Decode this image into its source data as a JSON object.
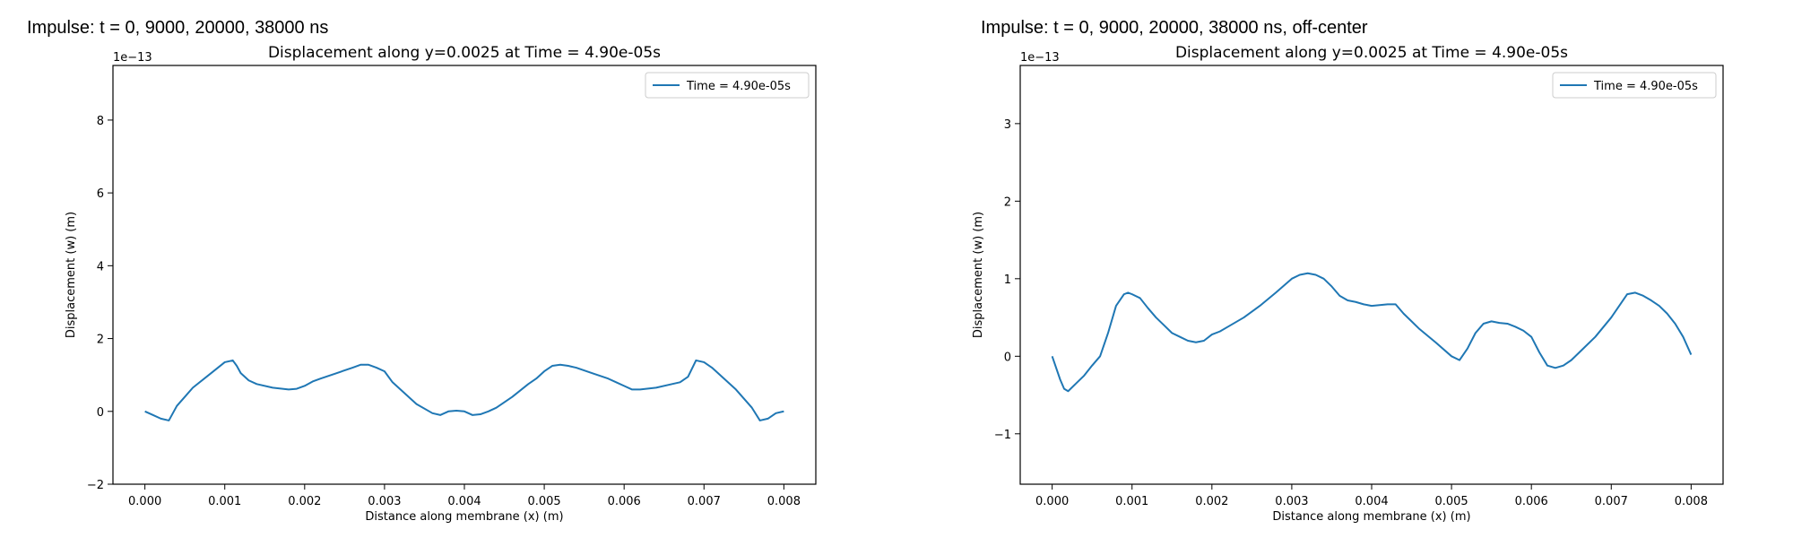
{
  "panels": [
    {
      "heading": "Impulse: t = 0, 9000, 20000, 38000 ns"
    },
    {
      "heading": "Impulse: t = 0, 9000, 20000, 38000 ns, off-center"
    }
  ],
  "colors": {
    "series": "#1f77b4",
    "axes": "#000000"
  },
  "chart_data": [
    {
      "type": "line",
      "title": "Displacement along y=0.0025 at Time = 4.90e-05s",
      "xlabel": "Distance along membrane (x) (m)",
      "ylabel": "Displacement (w) (m)",
      "y_offset_label": "1e−13",
      "xlim": [
        -0.0004,
        0.0084
      ],
      "ylim": [
        -2,
        9.5
      ],
      "xticks": [
        0.0,
        0.001,
        0.002,
        0.003,
        0.004,
        0.005,
        0.006,
        0.007,
        0.008
      ],
      "xtick_labels": [
        "0.000",
        "0.001",
        "0.002",
        "0.003",
        "0.004",
        "0.005",
        "0.006",
        "0.007",
        "0.008"
      ],
      "yticks": [
        -2,
        0,
        2,
        4,
        6,
        8
      ],
      "ytick_labels": [
        "−2",
        "0",
        "2",
        "4",
        "6",
        "8"
      ],
      "grid": false,
      "legend_position": "top-right",
      "series": [
        {
          "name": "Time = 4.90e-05s",
          "x": [
            0.0,
            0.0001,
            0.0002,
            0.0003,
            0.00035,
            0.0004,
            0.0005,
            0.0006,
            0.0008,
            0.001,
            0.0011,
            0.00115,
            0.0012,
            0.0013,
            0.0014,
            0.0016,
            0.0018,
            0.0019,
            0.002,
            0.0021,
            0.0022,
            0.0024,
            0.0026,
            0.0027,
            0.0028,
            0.0029,
            0.003,
            0.0031,
            0.0032,
            0.0034,
            0.0036,
            0.0037,
            0.0038,
            0.0039,
            0.004,
            0.0041,
            0.0042,
            0.0043,
            0.0044,
            0.0046,
            0.0048,
            0.0049,
            0.005,
            0.0051,
            0.0052,
            0.0053,
            0.0054,
            0.0056,
            0.0058,
            0.0059,
            0.006,
            0.0061,
            0.0062,
            0.0064,
            0.0066,
            0.0067,
            0.0068,
            0.0069,
            0.007,
            0.0071,
            0.0072,
            0.0073,
            0.0074,
            0.0075,
            0.0076,
            0.0077,
            0.0078,
            0.0079,
            0.008
          ],
          "y": [
            0.0,
            -0.1,
            -0.2,
            -0.25,
            -0.05,
            0.15,
            0.4,
            0.65,
            1.0,
            1.35,
            1.4,
            1.25,
            1.05,
            0.85,
            0.75,
            0.65,
            0.6,
            0.62,
            0.7,
            0.82,
            0.9,
            1.05,
            1.2,
            1.28,
            1.28,
            1.2,
            1.1,
            0.8,
            0.6,
            0.2,
            -0.05,
            -0.1,
            0.0,
            0.02,
            0.0,
            -0.1,
            -0.08,
            0.0,
            0.1,
            0.4,
            0.75,
            0.9,
            1.1,
            1.25,
            1.28,
            1.25,
            1.2,
            1.05,
            0.9,
            0.8,
            0.7,
            0.6,
            0.6,
            0.65,
            0.75,
            0.8,
            0.95,
            1.4,
            1.35,
            1.2,
            1.0,
            0.8,
            0.6,
            0.35,
            0.1,
            -0.25,
            -0.2,
            -0.05,
            0.0
          ]
        }
      ]
    },
    {
      "type": "line",
      "title": "Displacement along y=0.0025 at Time = 4.90e-05s",
      "xlabel": "Distance along membrane (x) (m)",
      "ylabel": "Displacement (w) (m)",
      "y_offset_label": "1e−13",
      "xlim": [
        -0.0004,
        0.0084
      ],
      "ylim": [
        -1.65,
        3.75
      ],
      "xticks": [
        0.0,
        0.001,
        0.002,
        0.003,
        0.004,
        0.005,
        0.006,
        0.007,
        0.008
      ],
      "xtick_labels": [
        "0.000",
        "0.001",
        "0.002",
        "0.003",
        "0.004",
        "0.005",
        "0.006",
        "0.007",
        "0.008"
      ],
      "yticks": [
        -1,
        0,
        1,
        2,
        3
      ],
      "ytick_labels": [
        "−1",
        "0",
        "1",
        "2",
        "3"
      ],
      "grid": false,
      "legend_position": "top-right",
      "series": [
        {
          "name": "Time = 4.90e-05s",
          "x": [
            0.0,
            0.0001,
            0.00015,
            0.0002,
            0.0003,
            0.0004,
            0.0005,
            0.0006,
            0.0007,
            0.0008,
            0.0009,
            0.00095,
            0.001,
            0.0011,
            0.0012,
            0.0013,
            0.0014,
            0.0015,
            0.0016,
            0.0017,
            0.0018,
            0.0019,
            0.002,
            0.0021,
            0.0022,
            0.0024,
            0.0026,
            0.0028,
            0.003,
            0.0031,
            0.0032,
            0.0033,
            0.0034,
            0.0035,
            0.0036,
            0.0037,
            0.0038,
            0.0039,
            0.004,
            0.0041,
            0.0042,
            0.0043,
            0.0044,
            0.0045,
            0.0046,
            0.0048,
            0.005,
            0.0051,
            0.0052,
            0.0053,
            0.0054,
            0.0055,
            0.0056,
            0.0057,
            0.0058,
            0.0059,
            0.006,
            0.0061,
            0.0062,
            0.0063,
            0.0064,
            0.0065,
            0.0066,
            0.0068,
            0.007,
            0.0071,
            0.0072,
            0.0073,
            0.0074,
            0.0075,
            0.0076,
            0.0077,
            0.0078,
            0.0079,
            0.008
          ],
          "y": [
            0.0,
            -0.3,
            -0.42,
            -0.45,
            -0.35,
            -0.25,
            -0.12,
            0.0,
            0.3,
            0.65,
            0.8,
            0.82,
            0.8,
            0.75,
            0.62,
            0.5,
            0.4,
            0.3,
            0.25,
            0.2,
            0.18,
            0.2,
            0.28,
            0.32,
            0.38,
            0.5,
            0.65,
            0.82,
            1.0,
            1.05,
            1.07,
            1.05,
            1.0,
            0.9,
            0.78,
            0.72,
            0.7,
            0.67,
            0.65,
            0.66,
            0.67,
            0.67,
            0.55,
            0.45,
            0.35,
            0.18,
            0.0,
            -0.05,
            0.1,
            0.3,
            0.42,
            0.45,
            0.43,
            0.42,
            0.38,
            0.33,
            0.25,
            0.05,
            -0.12,
            -0.15,
            -0.12,
            -0.05,
            0.05,
            0.25,
            0.5,
            0.65,
            0.8,
            0.82,
            0.78,
            0.72,
            0.65,
            0.55,
            0.42,
            0.25,
            0.02
          ]
        }
      ]
    }
  ]
}
